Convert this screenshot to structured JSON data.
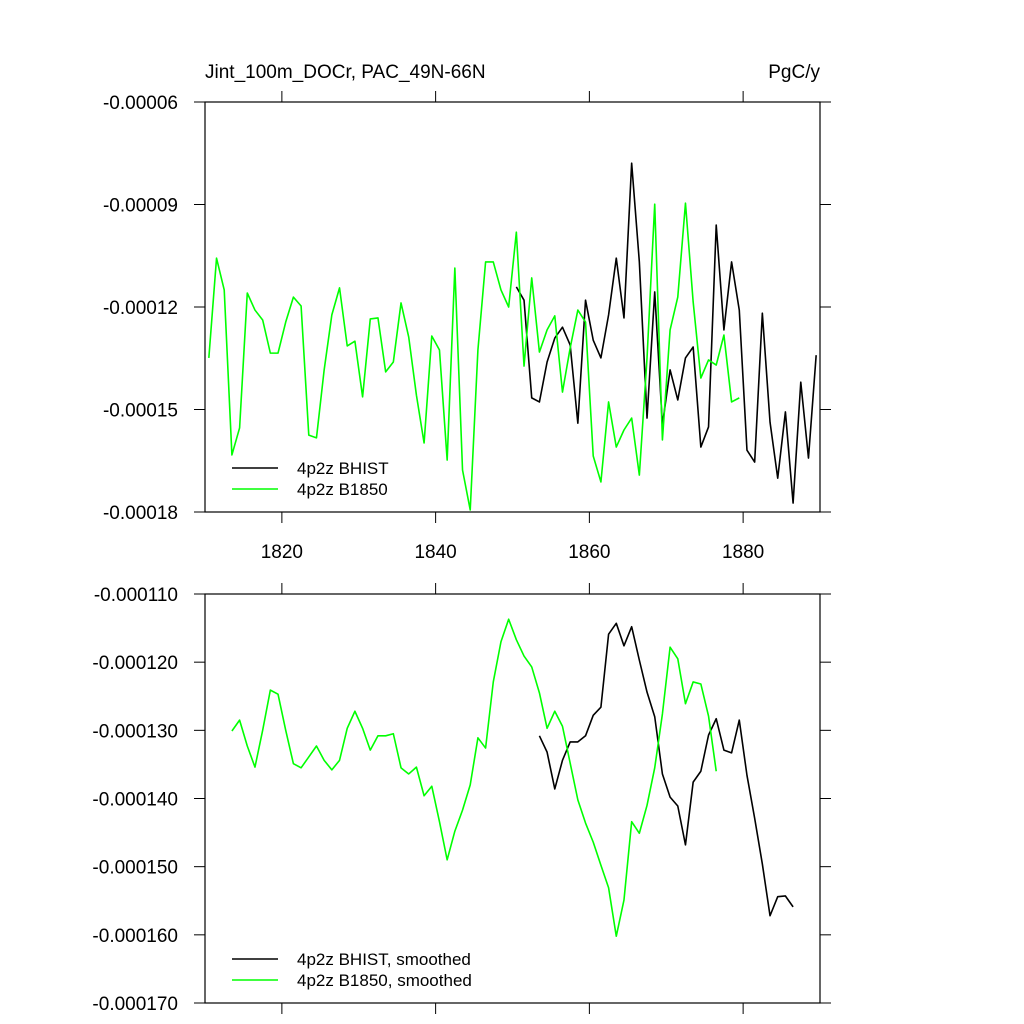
{
  "chart_data": [
    {
      "type": "line",
      "title": "Jint_100m_DOCr, PAC_49N-66N",
      "units_label": "PgC/y",
      "xlim": [
        1810,
        1890
      ],
      "xticks": [
        1820,
        1840,
        1860,
        1880
      ],
      "xtick_labels": true,
      "ylim": [
        -0.00018,
        -6e-05
      ],
      "yticks": [
        -0.00018,
        -0.00015,
        -0.00012,
        -9e-05,
        -6e-05
      ],
      "legend": "lower left",
      "series": [
        {
          "name": "4p2z BHIST",
          "color": "#000000",
          "x": [
            1850.5,
            1851.5,
            1852.5,
            1853.5,
            1854.5,
            1855.5,
            1856.5,
            1857.5,
            1858.5,
            1859.5,
            1860.5,
            1861.5,
            1862.5,
            1863.5,
            1864.5,
            1865.5,
            1866.5,
            1867.5,
            1868.5,
            1869.5,
            1870.5,
            1871.5,
            1872.5,
            1873.5,
            1874.5,
            1875.5,
            1876.5,
            1877.5,
            1878.5,
            1879.5,
            1880.5,
            1881.5,
            1882.5,
            1883.5,
            1884.5,
            1885.5,
            1886.5,
            1887.5,
            1888.5,
            1889.5
          ],
          "values": [
            -0.0001141,
            -0.000118,
            -0.0001466,
            -0.0001478,
            -0.0001361,
            -0.0001291,
            -0.0001259,
            -0.0001311,
            -0.000154,
            -0.000118,
            -0.0001297,
            -0.0001349,
            -0.0001223,
            -0.0001057,
            -0.0001232,
            -7.79e-05,
            -0.0001068,
            -0.0001525,
            -0.0001156,
            -0.0001545,
            -0.0001384,
            -0.0001472,
            -0.0001349,
            -0.0001317,
            -0.000161,
            -0.0001551,
            -9.6e-05,
            -0.0001267,
            -0.0001068,
            -0.0001209,
            -0.0001619,
            -0.0001654,
            -0.0001218,
            -0.0001537,
            -0.0001701,
            -0.0001507,
            -0.0001774,
            -0.000142,
            -0.0001642,
            -0.0001341
          ]
        },
        {
          "name": "4p2z B1850",
          "color": "#00ff00",
          "x": [
            1810.5,
            1811.5,
            1812.5,
            1813.5,
            1814.5,
            1815.5,
            1816.5,
            1817.5,
            1818.5,
            1819.5,
            1820.5,
            1821.5,
            1822.5,
            1823.5,
            1824.5,
            1825.5,
            1826.5,
            1827.5,
            1828.5,
            1829.5,
            1830.5,
            1831.5,
            1832.5,
            1833.5,
            1834.5,
            1835.5,
            1836.5,
            1837.5,
            1838.5,
            1839.5,
            1840.5,
            1841.5,
            1842.5,
            1843.5,
            1844.5,
            1845.5,
            1846.5,
            1847.5,
            1848.5,
            1849.5,
            1850.5,
            1851.5,
            1852.5,
            1853.5,
            1854.5,
            1855.5,
            1856.5,
            1857.5,
            1858.5,
            1859.5,
            1860.5,
            1861.5,
            1862.5,
            1863.5,
            1864.5,
            1865.5,
            1866.5,
            1867.5,
            1868.5,
            1869.5,
            1870.5,
            1871.5,
            1872.5,
            1873.5,
            1874.5,
            1875.5,
            1876.5,
            1877.5,
            1878.5,
            1879.5
          ],
          "values": [
            -0.0001349,
            -0.0001057,
            -0.000115,
            -0.0001633,
            -0.0001554,
            -0.0001159,
            -0.0001209,
            -0.0001238,
            -0.0001335,
            -0.0001335,
            -0.0001244,
            -0.0001171,
            -0.0001197,
            -0.0001575,
            -0.0001583,
            -0.0001384,
            -0.0001223,
            -0.0001144,
            -0.0001314,
            -0.00013,
            -0.0001463,
            -0.0001235,
            -0.0001232,
            -0.000139,
            -0.0001361,
            -0.0001188,
            -0.0001288,
            -0.0001458,
            -0.0001598,
            -0.0001285,
            -0.0001326,
            -0.0001648,
            -0.0001086,
            -0.0001677,
            -0.0001794,
            -0.0001326,
            -0.0001068,
            -0.0001068,
            -0.000115,
            -0.00012,
            -9.81e-05,
            -0.0001373,
            -0.0001115,
            -0.0001332,
            -0.0001267,
            -0.0001226,
            -0.0001449,
            -0.000132,
            -0.0001209,
            -0.0001244,
            -0.0001636,
            -0.0001712,
            -0.0001478,
            -0.000161,
            -0.000156,
            -0.0001525,
            -0.0001692,
            -0.0001349,
            -8.99e-05,
            -0.0001589,
            -0.0001267,
            -0.0001171,
            -8.96e-05,
            -0.0001185,
            -0.0001408,
            -0.0001355,
            -0.000137,
            -0.0001282,
            -0.0001478,
            -0.0001466
          ]
        }
      ]
    },
    {
      "type": "line",
      "xlim": [
        1810,
        1890
      ],
      "xticks": [
        1820,
        1840,
        1860,
        1880
      ],
      "xtick_labels": false,
      "ylim": [
        -0.00017,
        -0.00011
      ],
      "yticks": [
        {
          "value": -0.00017,
          "label": "-0.000170"
        },
        {
          "value": -0.00016,
          "label": "-0.000160"
        },
        {
          "value": -0.00015,
          "label": "-0.000150"
        },
        {
          "value": -0.00014,
          "label": "-0.000140"
        },
        {
          "value": -0.00013,
          "label": "-0.000130"
        },
        {
          "value": -0.00012,
          "label": "-0.000120"
        },
        {
          "value": -0.00011,
          "label": "-0.000110"
        }
      ],
      "legend": "lower left",
      "series": [
        {
          "name": "4p2z BHIST, smoothed",
          "color": "#000000",
          "x": [
            1853.5,
            1854.5,
            1855.5,
            1856.5,
            1857.5,
            1858.5,
            1859.5,
            1860.5,
            1861.5,
            1862.5,
            1863.5,
            1864.5,
            1865.5,
            1866.5,
            1867.5,
            1868.5,
            1869.5,
            1870.5,
            1871.5,
            1872.5,
            1873.5,
            1874.5,
            1875.5,
            1876.5,
            1877.5,
            1878.5,
            1879.5,
            1880.5,
            1881.5,
            1882.5,
            1883.5,
            1884.5,
            1885.5,
            1886.5
          ],
          "values": [
            -0.0001308,
            -0.0001332,
            -0.0001386,
            -0.0001344,
            -0.0001317,
            -0.0001317,
            -0.0001308,
            -0.0001278,
            -0.0001266,
            -0.0001159,
            -0.0001143,
            -0.0001176,
            -0.0001148,
            -0.0001197,
            -0.0001244,
            -0.000128,
            -0.0001364,
            -0.0001398,
            -0.0001411,
            -0.0001468,
            -0.0001376,
            -0.000136,
            -0.0001307,
            -0.0001283,
            -0.0001329,
            -0.0001333,
            -0.0001285,
            -0.0001366,
            -0.0001429,
            -0.0001496,
            -0.0001572,
            -0.0001544,
            -0.0001543,
            -0.0001559
          ]
        },
        {
          "name": "4p2z B1850, smoothed",
          "color": "#00ff00",
          "x": [
            1813.5,
            1814.5,
            1815.5,
            1816.5,
            1817.5,
            1818.5,
            1819.5,
            1820.5,
            1821.5,
            1822.5,
            1823.5,
            1824.5,
            1825.5,
            1826.5,
            1827.5,
            1828.5,
            1829.5,
            1830.5,
            1831.5,
            1832.5,
            1833.5,
            1834.5,
            1835.5,
            1836.5,
            1837.5,
            1838.5,
            1839.5,
            1840.5,
            1841.5,
            1842.5,
            1843.5,
            1844.5,
            1845.5,
            1846.5,
            1847.5,
            1848.5,
            1849.5,
            1850.5,
            1851.5,
            1852.5,
            1853.5,
            1854.5,
            1855.5,
            1856.5,
            1857.5,
            1858.5,
            1859.5,
            1860.5,
            1861.5,
            1862.5,
            1863.5,
            1864.5,
            1865.5,
            1866.5,
            1867.5,
            1868.5,
            1869.5,
            1870.5,
            1871.5,
            1872.5,
            1873.5,
            1874.5,
            1875.5,
            1876.5
          ],
          "values": [
            -0.0001301,
            -0.0001285,
            -0.0001323,
            -0.0001354,
            -0.00013,
            -0.0001241,
            -0.0001247,
            -0.00013,
            -0.0001349,
            -0.0001355,
            -0.0001339,
            -0.0001323,
            -0.0001344,
            -0.0001358,
            -0.0001344,
            -0.0001297,
            -0.0001272,
            -0.0001297,
            -0.0001329,
            -0.0001308,
            -0.0001308,
            -0.0001305,
            -0.0001355,
            -0.0001364,
            -0.0001354,
            -0.0001396,
            -0.0001382,
            -0.0001434,
            -0.000149,
            -0.0001448,
            -0.0001417,
            -0.000138,
            -0.0001311,
            -0.0001326,
            -0.0001229,
            -0.000117,
            -0.0001137,
            -0.0001167,
            -0.0001191,
            -0.0001207,
            -0.0001245,
            -0.0001297,
            -0.0001272,
            -0.0001294,
            -0.0001348,
            -0.0001402,
            -0.0001436,
            -0.0001464,
            -0.0001498,
            -0.0001531,
            -0.0001602,
            -0.0001549,
            -0.0001434,
            -0.0001451,
            -0.000141,
            -0.0001355,
            -0.0001276,
            -0.0001178,
            -0.0001195,
            -0.0001261,
            -0.0001229,
            -0.0001232,
            -0.0001279,
            -0.000136
          ]
        }
      ]
    }
  ]
}
